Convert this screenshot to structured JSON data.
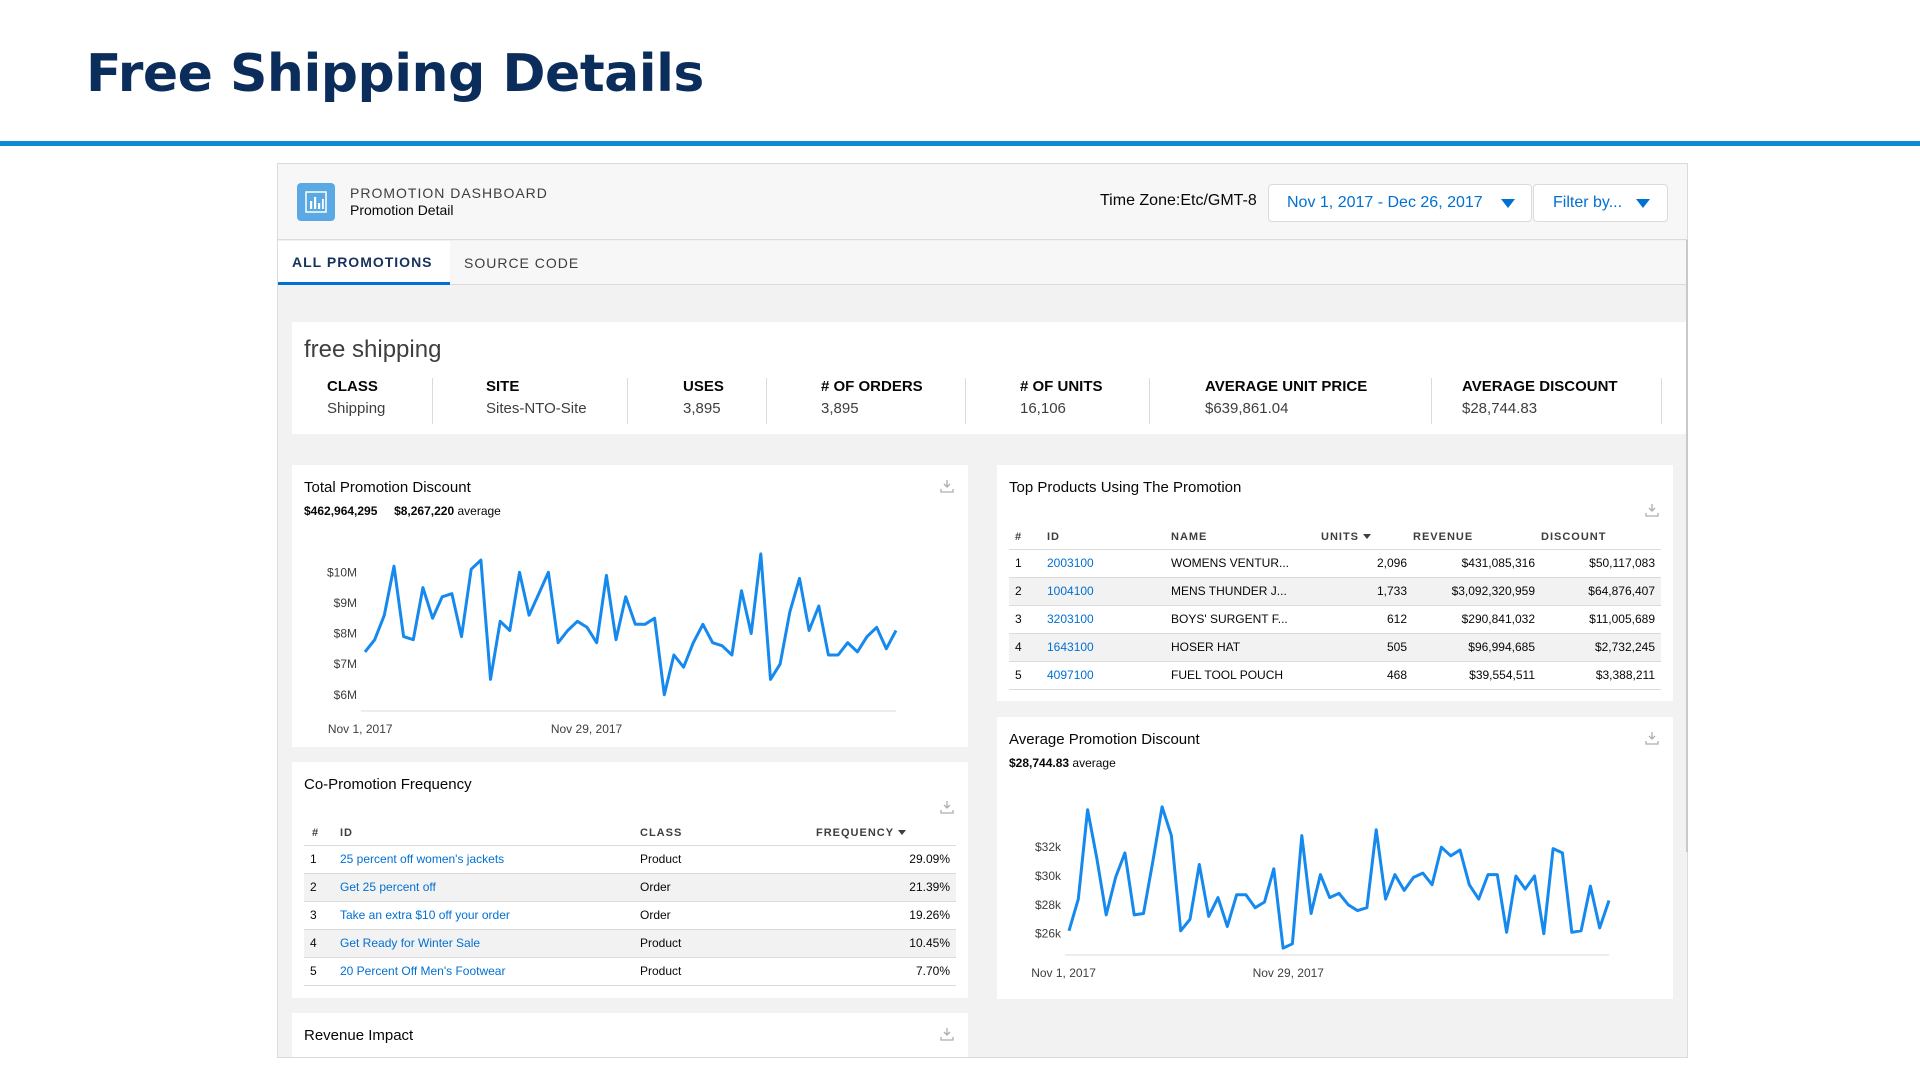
{
  "slide": {
    "title": "Free Shipping Details"
  },
  "header": {
    "supertitle": "PROMOTION DASHBOARD",
    "subtitle": "Promotion Detail",
    "timezone": "Time Zone:Etc/GMT-8",
    "date_range": "Nov 1, 2017 - Dec 26, 2017",
    "filter_label": "Filter by...",
    "icon": "bar-chart-icon"
  },
  "tabs": [
    {
      "label": "ALL PROMOTIONS",
      "active": true
    },
    {
      "label": "SOURCE CODE",
      "active": false
    }
  ],
  "summary": {
    "title": "free shipping",
    "metrics": [
      {
        "label": "CLASS",
        "value": "Shipping"
      },
      {
        "label": "SITE",
        "value": "Sites-NTO-Site"
      },
      {
        "label": "USES",
        "value": "3,895"
      },
      {
        "label": "# OF ORDERS",
        "value": "3,895"
      },
      {
        "label": "# OF UNITS",
        "value": "16,106"
      },
      {
        "label": "AVERAGE UNIT PRICE",
        "value": "$639,861.04"
      },
      {
        "label": "AVERAGE DISCOUNT",
        "value": "$28,744.83"
      }
    ]
  },
  "total_discount": {
    "title": "Total Promotion Discount",
    "total": "$462,964,295",
    "average": "$8,267,220",
    "average_label": "average"
  },
  "top_products": {
    "title": "Top Products Using The Promotion",
    "columns": [
      "#",
      "ID",
      "NAME",
      "UNITS",
      "REVENUE",
      "DISCOUNT"
    ],
    "rows": [
      {
        "n": "1",
        "id": "2003100",
        "name": "WOMENS VENTUR...",
        "units": "2,096",
        "revenue": "$431,085,316",
        "discount": "$50,117,083"
      },
      {
        "n": "2",
        "id": "1004100",
        "name": "MENS THUNDER J...",
        "units": "1,733",
        "revenue": "$3,092,320,959",
        "discount": "$64,876,407"
      },
      {
        "n": "3",
        "id": "3203100",
        "name": "BOYS' SURGENT F...",
        "units": "612",
        "revenue": "$290,841,032",
        "discount": "$11,005,689"
      },
      {
        "n": "4",
        "id": "1643100",
        "name": "HOSER HAT",
        "units": "505",
        "revenue": "$96,994,685",
        "discount": "$2,732,245"
      },
      {
        "n": "5",
        "id": "4097100",
        "name": "FUEL TOOL POUCH",
        "units": "468",
        "revenue": "$39,554,511",
        "discount": "$3,388,211"
      }
    ]
  },
  "copromotion": {
    "title": "Co-Promotion Frequency",
    "columns": [
      "#",
      "ID",
      "CLASS",
      "FREQUENCY"
    ],
    "rows": [
      {
        "n": "1",
        "id": "25 percent off women's jackets",
        "cls": "Product",
        "freq": "29.09%"
      },
      {
        "n": "2",
        "id": "Get 25 percent off",
        "cls": "Order",
        "freq": "21.39%"
      },
      {
        "n": "3",
        "id": "Take an extra $10 off your order",
        "cls": "Order",
        "freq": "19.26%"
      },
      {
        "n": "4",
        "id": "Get Ready for Winter Sale",
        "cls": "Product",
        "freq": "10.45%"
      },
      {
        "n": "5",
        "id": "20 Percent Off Men's Footwear",
        "cls": "Product",
        "freq": "7.70%"
      }
    ]
  },
  "avg_discount": {
    "title": "Average Promotion Discount",
    "average": "$28,744.83",
    "average_label": "average"
  },
  "revenue_impact": {
    "title": "Revenue Impact"
  },
  "chart_data": [
    {
      "type": "line",
      "title": "",
      "x_tick_labels": [
        "Nov 1, 2017",
        "Nov 29, 2017"
      ],
      "y_tick_labels": [
        "$10M",
        "$9M",
        "$8M",
        "$7M",
        "$6M"
      ],
      "ylim": [
        5.6,
        10.5
      ],
      "series": [
        {
          "values": [
            7.4,
            7.8,
            8.6,
            10.2,
            7.9,
            7.8,
            9.5,
            8.5,
            9.2,
            9.3,
            7.9,
            10.1,
            10.4,
            6.5,
            8.4,
            8.1,
            10.0,
            8.6,
            9.3,
            10.0,
            7.7,
            8.1,
            8.4,
            8.2,
            7.7,
            9.9,
            7.8,
            9.2,
            8.3,
            8.3,
            8.5,
            6.0,
            7.3,
            6.9,
            7.7,
            8.3,
            7.7,
            7.6,
            7.3,
            9.4,
            8.0,
            10.6,
            6.5,
            7.0,
            8.7,
            9.8,
            8.1,
            8.9,
            7.3,
            7.3,
            7.7,
            7.4,
            7.9,
            8.2,
            7.5,
            8.1
          ]
        }
      ]
    },
    {
      "type": "line",
      "title": "",
      "x_tick_labels": [
        "Nov 1, 2017",
        "Nov 29, 2017"
      ],
      "y_tick_labels": [
        "$32k",
        "$30k",
        "$28k",
        "$26k"
      ],
      "ylim": [
        24.8,
        35.2
      ],
      "series": [
        {
          "values": [
            26.2,
            28.4,
            34.6,
            31.2,
            27.3,
            29.9,
            31.6,
            27.3,
            27.4,
            31.0,
            34.8,
            32.8,
            26.2,
            27.0,
            30.8,
            27.2,
            28.5,
            26.5,
            28.7,
            28.7,
            27.8,
            28.2,
            30.5,
            25.0,
            25.3,
            32.8,
            27.4,
            30.1,
            28.5,
            28.8,
            28.0,
            27.6,
            27.8,
            33.2,
            28.4,
            30.1,
            29.0,
            29.9,
            30.2,
            29.4,
            32.0,
            31.4,
            31.8,
            29.4,
            28.4,
            30.1,
            30.1,
            26.1,
            30.0,
            29.1,
            30.0,
            26.0,
            31.9,
            31.6,
            26.1,
            26.2,
            29.3,
            26.4,
            28.3
          ]
        }
      ]
    }
  ]
}
